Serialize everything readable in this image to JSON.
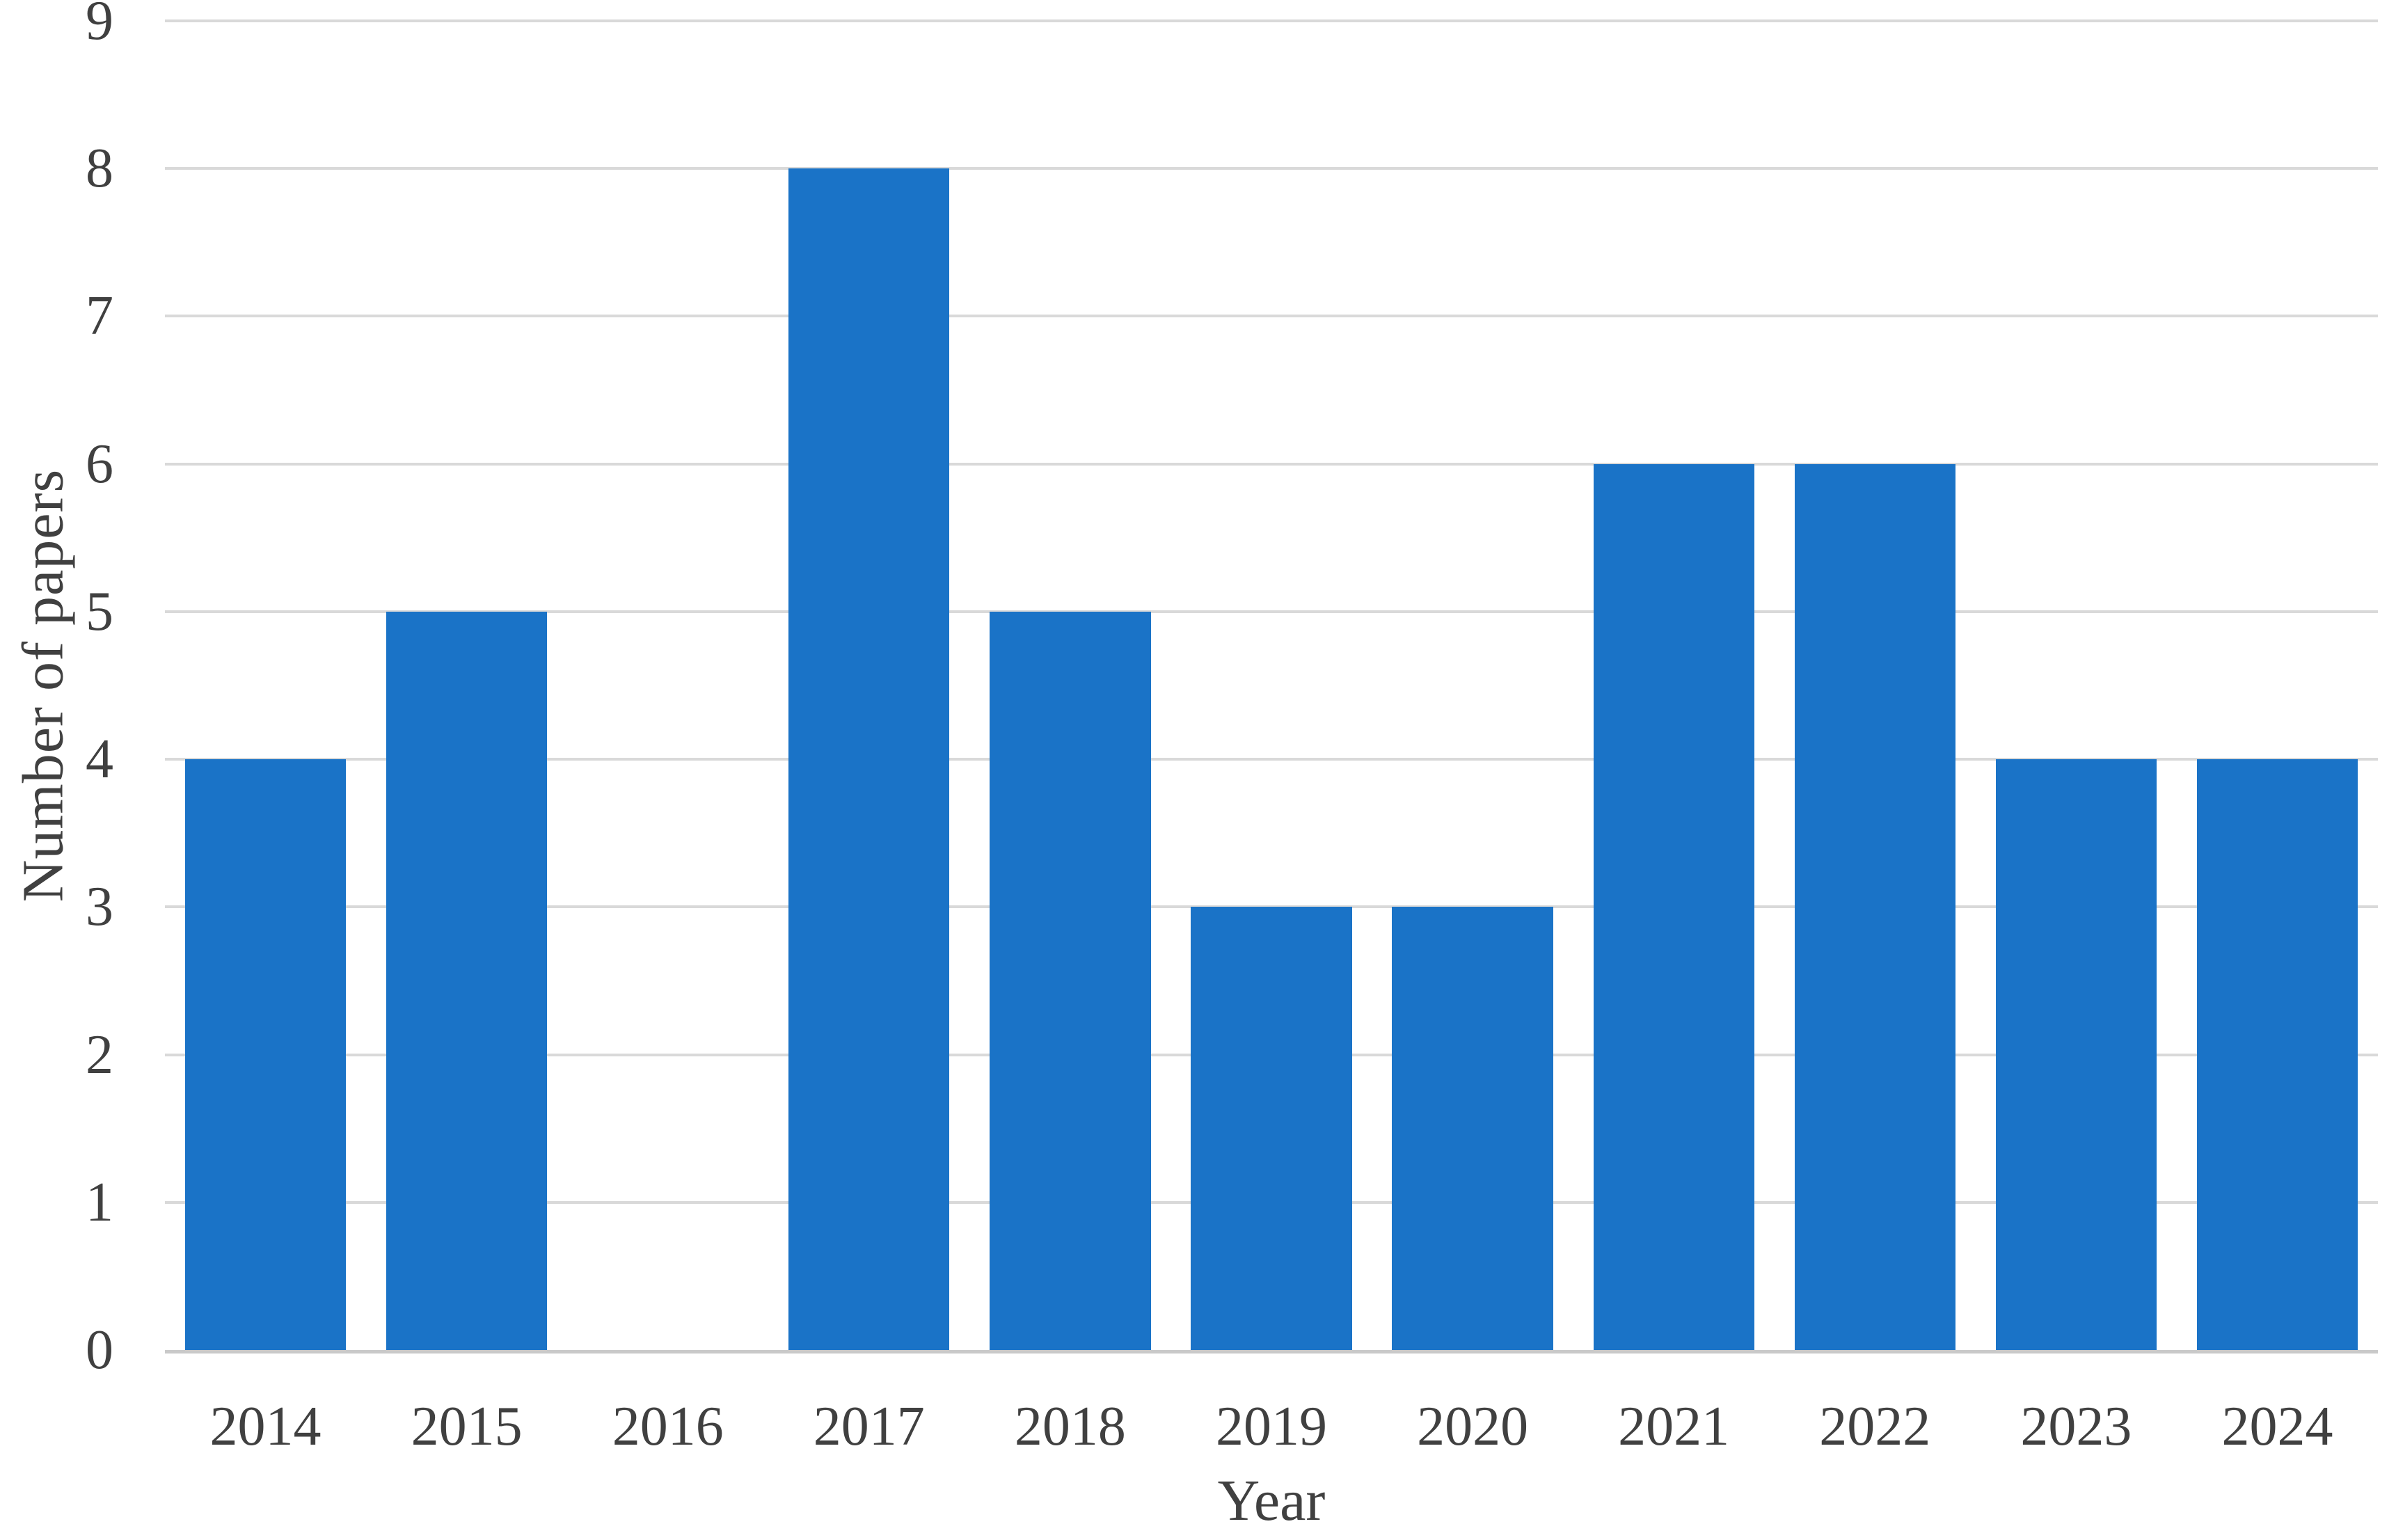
{
  "chart_data": {
    "type": "bar",
    "title": "",
    "categories": [
      "2014",
      "2015",
      "2016",
      "2017",
      "2018",
      "2019",
      "2020",
      "2021",
      "2022",
      "2023",
      "2024"
    ],
    "values": [
      4,
      5,
      0,
      8,
      5,
      3,
      3,
      6,
      6,
      4,
      4
    ],
    "xlabel": "Year",
    "ylabel": "Number of papers",
    "ylim": [
      0,
      9
    ],
    "yticks": [
      0,
      1,
      2,
      3,
      4,
      5,
      6,
      7,
      8,
      9
    ],
    "grid": "horizontal-only",
    "legend": "none",
    "colors": {
      "bar": "#1a73c7",
      "gridline": "#d9d9d9",
      "axis_line": "#c9c9c9",
      "label_text": "#404040",
      "background": "#ffffff"
    }
  }
}
